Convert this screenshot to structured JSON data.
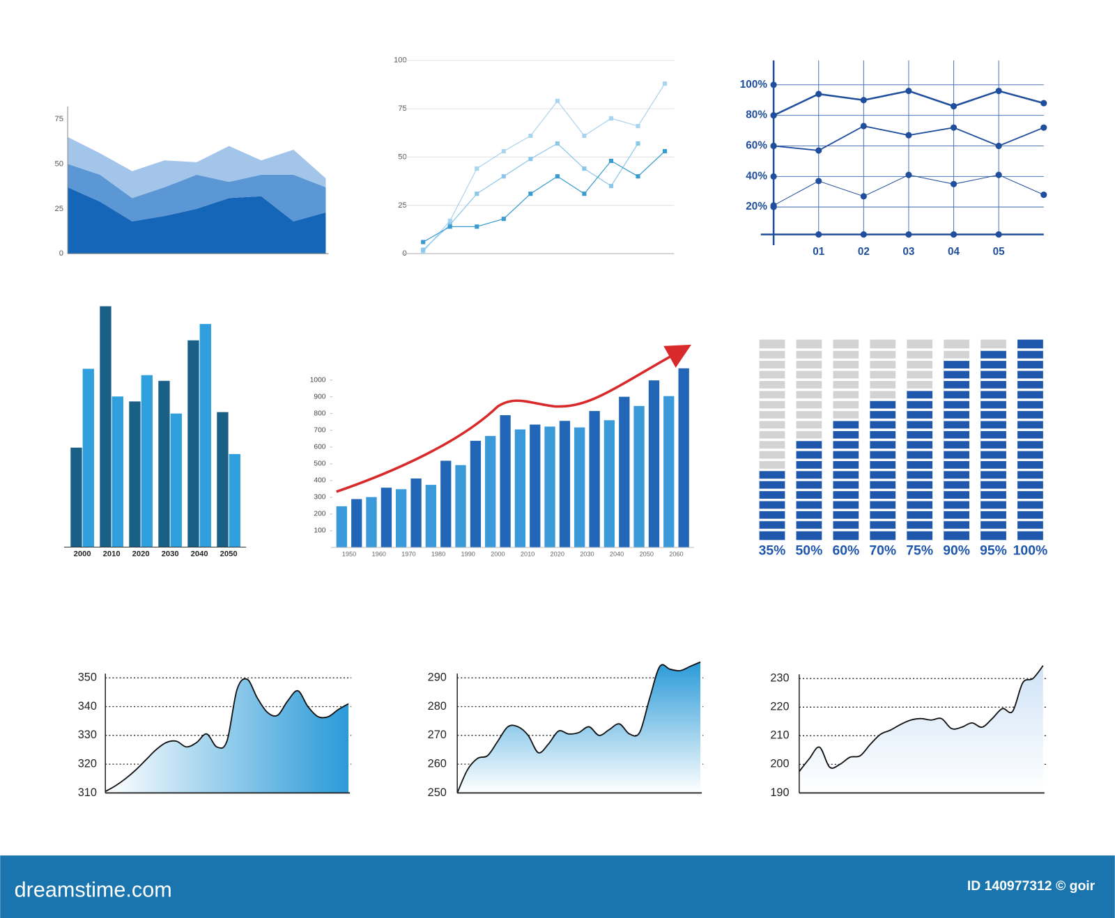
{
  "chart_data": [
    {
      "type": "area",
      "stacked": true,
      "categories": [
        null,
        null,
        null,
        null,
        null,
        null,
        null,
        null,
        null
      ],
      "ylim": [
        0,
        82
      ],
      "yticks": [
        0,
        25,
        50,
        75
      ],
      "series": [
        {
          "color": "#1565b8",
          "values": [
            37,
            29,
            18,
            21,
            25,
            31,
            32,
            18,
            23
          ]
        },
        {
          "color": "#5b97d5",
          "values": [
            13,
            15,
            13,
            16,
            19,
            9,
            12,
            26,
            14
          ]
        },
        {
          "color": "#a3c5ea",
          "values": [
            15,
            12,
            15,
            15,
            7,
            20,
            8,
            14,
            5
          ]
        }
      ]
    },
    {
      "type": "line",
      "markers": "square",
      "categories": [
        null,
        null,
        null,
        null,
        null,
        null,
        null,
        null,
        null,
        null
      ],
      "ylim": [
        0,
        100
      ],
      "yticks": [
        0,
        25,
        50,
        75,
        100
      ],
      "grid": true,
      "series": [
        {
          "color": "#a9d4ee",
          "values": [
            1,
            17,
            44,
            53,
            61,
            79,
            61,
            70,
            66,
            88
          ]
        },
        {
          "color": "#8cc7ea",
          "values": [
            2,
            15,
            31,
            40,
            49,
            57,
            44,
            35,
            57,
            null
          ]
        },
        {
          "color": "#3a9bd0",
          "values": [
            6,
            14,
            14,
            18,
            31,
            40,
            31,
            48,
            40,
            53
          ]
        }
      ]
    },
    {
      "type": "line",
      "markers": "circle",
      "categories": [
        null,
        "01",
        "02",
        "03",
        "04",
        "05",
        null
      ],
      "ylim": [
        2,
        116
      ],
      "yticks": [
        {
          "value": 20,
          "label": "20%"
        },
        {
          "value": 40,
          "label": "40%"
        },
        {
          "value": 60,
          "label": "60%"
        },
        {
          "value": 80,
          "label": "80%"
        },
        {
          "value": 100,
          "label": "100%"
        }
      ],
      "grid": true,
      "series": [
        {
          "color": "#1f4e9c",
          "values": [
            80,
            94,
            90,
            96,
            86,
            96,
            88
          ]
        },
        {
          "color": "#1f4e9c",
          "values": [
            60,
            57,
            73,
            67,
            72,
            60,
            72
          ]
        },
        {
          "color": "#1f4e9c",
          "values": [
            21,
            37,
            27,
            41,
            35,
            41,
            28
          ]
        }
      ]
    },
    {
      "type": "bar",
      "categories": [
        "2000",
        "2010",
        "2020",
        "2030",
        "2040",
        "2050"
      ],
      "series": [
        {
          "color": "#1a5f85",
          "values": [
            140,
            339,
            205,
            234,
            291,
            190
          ]
        },
        {
          "color": "#2f9fdd",
          "values": [
            251,
            212,
            242,
            188,
            314,
            131
          ]
        }
      ]
    },
    {
      "type": "bar",
      "categories": [
        "1950",
        "1960",
        "1970",
        "1980",
        "1990",
        "2000",
        "2010",
        "2020",
        "2030",
        "2040",
        "2050",
        "2060"
      ],
      "ylim": [
        0,
        1100
      ],
      "yticks": [
        100,
        200,
        300,
        400,
        500,
        600,
        700,
        800,
        900,
        1000
      ],
      "series": [
        {
          "color": "#3a9ad9",
          "values": [
            246,
            301,
            348,
            374,
            492,
            666,
            705,
            722,
            717,
            760,
            845,
            904
          ]
        },
        {
          "color": "#2266b8",
          "values": [
            289,
            357,
            412,
            518,
            637,
            790,
            734,
            756,
            815,
            900,
            998,
            1070
          ]
        }
      ]
    },
    {
      "type": "progress",
      "ylim": [
        0,
        100
      ],
      "color": "#1f57ad",
      "track_color": "#d3d3d3",
      "values": [
        35,
        50,
        60,
        70,
        75,
        90,
        95,
        100
      ],
      "value_labels": [
        "35%",
        "50%",
        "60%",
        "70%",
        "75%",
        "90%",
        "95%",
        "100%"
      ]
    },
    {
      "type": "area",
      "smooth": true,
      "color": "#2a9ad8",
      "categories": [
        null,
        null,
        null,
        null,
        null,
        null,
        null,
        null,
        null,
        null,
        null,
        null,
        null,
        null,
        null,
        null,
        null,
        null,
        null,
        null,
        null,
        null,
        null,
        null,
        null
      ],
      "ylim": [
        310,
        350
      ],
      "yticks": [
        310,
        320,
        330,
        340,
        350
      ],
      "grid": true,
      "values": [
        310.5,
        312.5,
        315,
        318,
        321.5,
        325,
        327.5,
        328,
        326,
        327.5,
        330.5,
        326,
        328,
        346,
        349.5,
        343,
        338,
        337,
        342,
        345.5,
        340,
        336.5,
        336.5,
        339,
        341
      ]
    },
    {
      "type": "area",
      "smooth": true,
      "color": "#2a9ad8",
      "categories": [
        null,
        null,
        null,
        null,
        null,
        null,
        null,
        null,
        null,
        null,
        null,
        null,
        null,
        null,
        null,
        null,
        null,
        null,
        null,
        null,
        null,
        null,
        null,
        null,
        null
      ],
      "ylim": [
        250,
        290
      ],
      "yticks": [
        250,
        260,
        270,
        280,
        290
      ],
      "grid": true,
      "values": [
        250,
        258,
        262,
        263,
        268,
        273,
        273,
        270,
        264,
        267,
        271.5,
        270.5,
        271,
        273,
        270,
        272,
        274,
        270.5,
        271,
        283,
        294,
        293,
        292.5,
        294,
        295.5
      ]
    },
    {
      "type": "area",
      "smooth": true,
      "color": "#2a9ad8",
      "categories": [
        null,
        null,
        null,
        null,
        null,
        null,
        null,
        null,
        null,
        null,
        null,
        null,
        null,
        null,
        null,
        null,
        null,
        null,
        null,
        null,
        null,
        null,
        null,
        null,
        null
      ],
      "ylim": [
        190,
        230
      ],
      "yticks": [
        190,
        200,
        210,
        220,
        230
      ],
      "grid": true,
      "values": [
        197.5,
        202,
        206,
        199,
        200,
        202.5,
        203,
        207,
        210.5,
        212,
        214,
        215.5,
        216,
        215.5,
        216,
        212.5,
        213,
        214.5,
        213,
        216,
        219.5,
        218.5,
        228.5,
        230,
        234.5
      ]
    }
  ],
  "footer": {
    "brand": "dreamstime.com",
    "id": "ID 140977312 © goir"
  }
}
